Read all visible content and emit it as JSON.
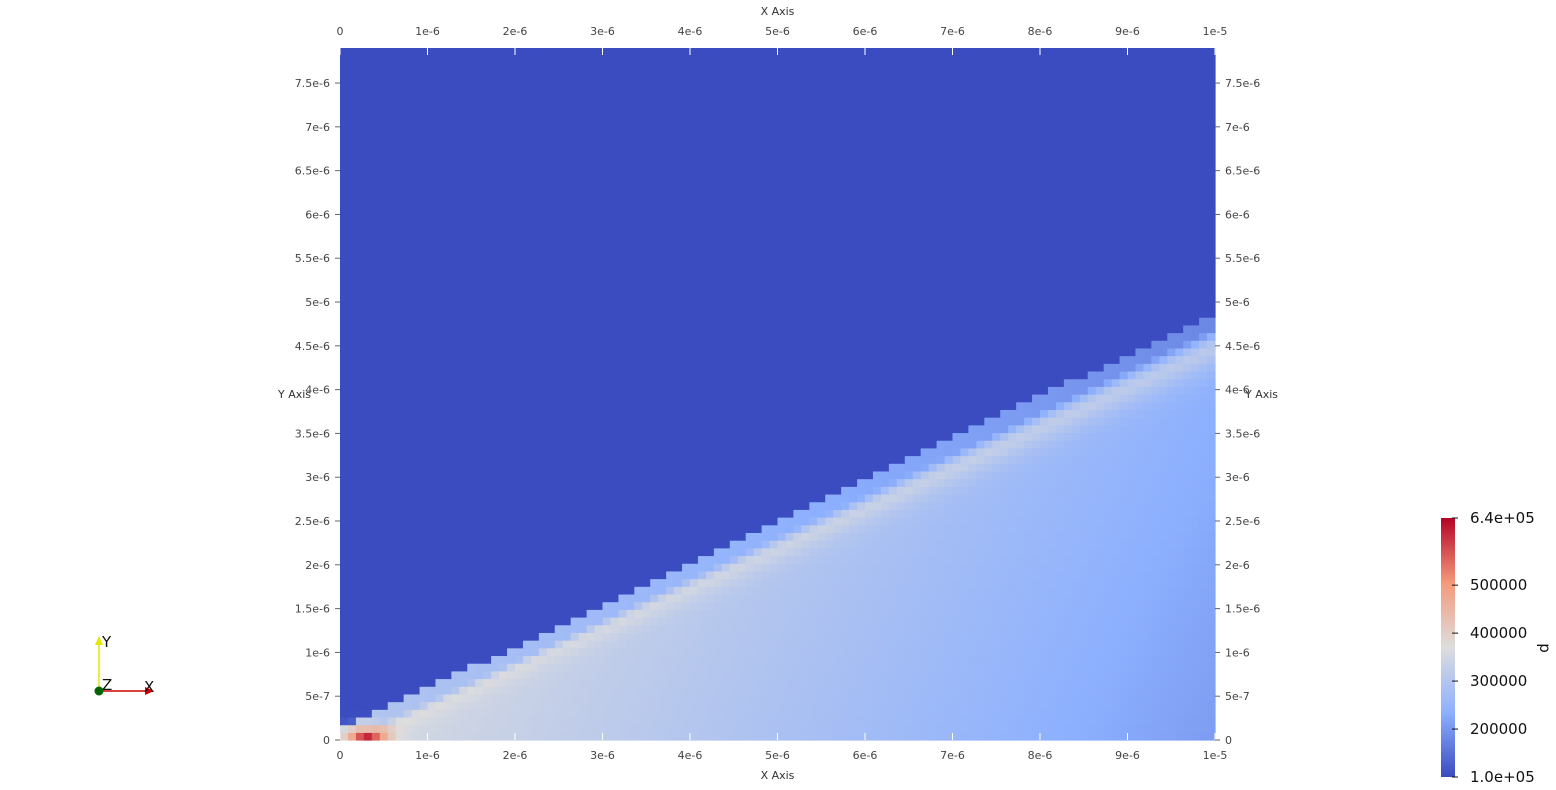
{
  "chart_data": {
    "type": "heatmap",
    "field_name": "p",
    "x_axis": {
      "title": "X Axis",
      "range": [
        0,
        1e-05
      ],
      "ticks": [
        0,
        1e-06,
        2e-06,
        3e-06,
        4e-06,
        5e-06,
        6e-06,
        7e-06,
        8e-06,
        9e-06,
        1e-05
      ],
      "tick_labels": [
        "0",
        "1e-6",
        "2e-6",
        "3e-6",
        "4e-6",
        "5e-6",
        "6e-6",
        "7e-6",
        "8e-6",
        "9e-6",
        "1e-5"
      ]
    },
    "y_axis": {
      "title": "Y Axis",
      "range": [
        0,
        7.9e-06
      ],
      "ticks": [
        0,
        5e-07,
        1e-06,
        1.5e-06,
        2e-06,
        2.5e-06,
        3e-06,
        3.5e-06,
        4e-06,
        4.5e-06,
        5e-06,
        5.5e-06,
        6e-06,
        6.5e-06,
        7e-06,
        7.5e-06
      ],
      "tick_labels": [
        "0",
        "5e-7",
        "1e-6",
        "1.5e-6",
        "2e-6",
        "2.5e-6",
        "3e-6",
        "3.5e-6",
        "4e-6",
        "4.5e-6",
        "5e-6",
        "5.5e-6",
        "6e-6",
        "6.5e-6",
        "7e-6",
        "7.5e-6"
      ]
    },
    "colorbar": {
      "range": [
        100000,
        640000
      ],
      "labels": [
        {
          "value": 640000,
          "text": "6.4e+05"
        },
        {
          "value": 500000,
          "text": "500000"
        },
        {
          "value": 400000,
          "text": "400000"
        },
        {
          "value": 300000,
          "text": "300000"
        },
        {
          "value": 200000,
          "text": "200000"
        },
        {
          "value": 100000,
          "text": "1.0e+05"
        }
      ],
      "colormap": [
        "#3b4cc0",
        "#8db0fe",
        "#dddddd",
        "#f49a7b",
        "#b40426"
      ]
    },
    "field": {
      "freestream_value": 100000,
      "shock_angle_deg": 25,
      "shock_peak_value": 400000,
      "post_shock_near_wall_value": 360000,
      "post_shock_far_wall_value": 240000,
      "leading_edge_peak_value": 640000
    },
    "grid": false,
    "colorbar_placement": "bottom-right"
  },
  "orientation_axes": {
    "x_label": "X",
    "y_label": "Y",
    "z_label": "Z",
    "colors": {
      "x": "#d40000",
      "y": "#e6e600",
      "z": "#006400"
    }
  }
}
